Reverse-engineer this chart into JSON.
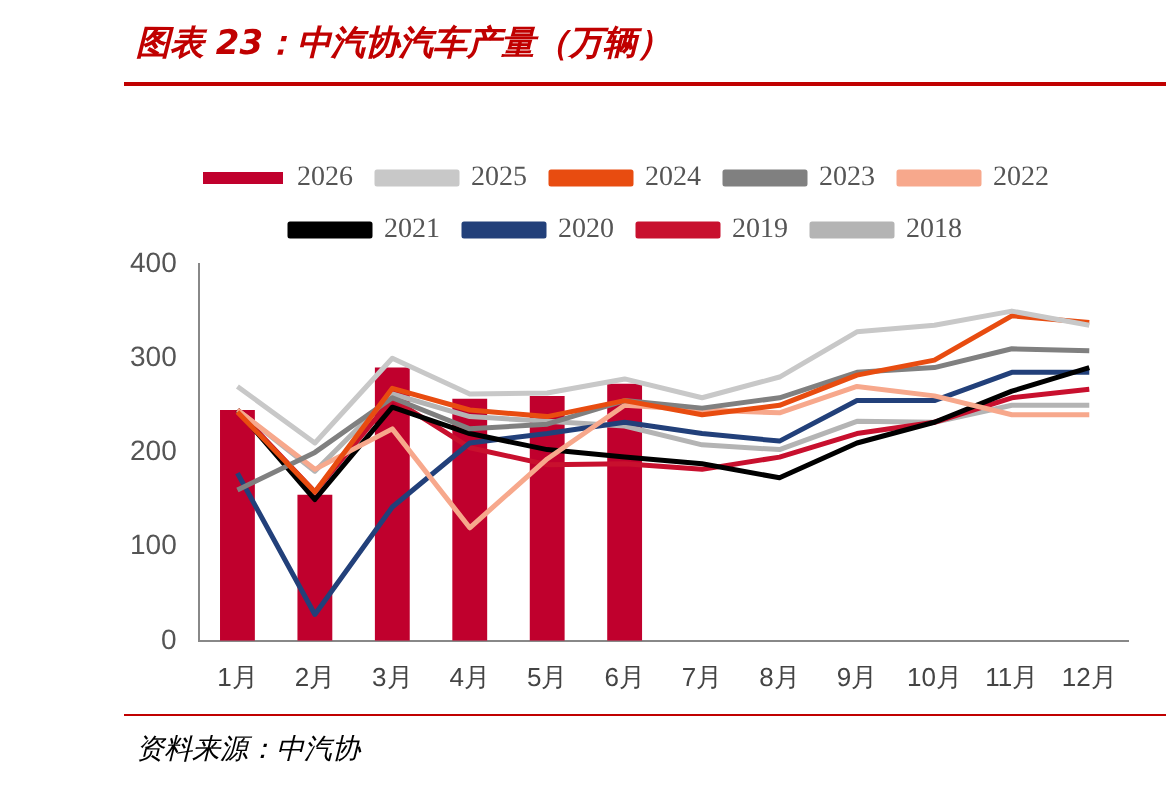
{
  "chart_data": {
    "type": "line",
    "title": "图表 23：中汽协汽车产量（万辆）",
    "categories": [
      "1月",
      "2月",
      "3月",
      "4月",
      "5月",
      "6月",
      "7月",
      "8月",
      "9月",
      "10月",
      "11月",
      "12月"
    ],
    "series": [
      {
        "name": "2026",
        "type": "bar",
        "color": "#c0002d",
        "values": [
          245,
          155,
          290,
          257,
          260,
          273,
          null,
          null,
          null,
          null,
          null,
          null
        ]
      },
      {
        "name": "2025",
        "color": "#c8c8c8",
        "values": [
          270,
          210,
          300,
          262,
          263,
          278,
          258,
          280,
          328,
          335,
          350,
          335
        ]
      },
      {
        "name": "2024",
        "color": "#e84c10",
        "values": [
          243,
          158,
          268,
          245,
          238,
          255,
          240,
          250,
          282,
          298,
          345,
          338
        ]
      },
      {
        "name": "2023",
        "color": "#808080",
        "values": [
          160,
          200,
          258,
          225,
          230,
          255,
          247,
          258,
          285,
          290,
          310,
          308
        ]
      },
      {
        "name": "2022",
        "color": "#f7a88c",
        "values": [
          245,
          182,
          225,
          120,
          193,
          250,
          245,
          242,
          270,
          260,
          240,
          240
        ]
      },
      {
        "name": "2021",
        "color": "#000000",
        "values": [
          245,
          150,
          248,
          220,
          203,
          195,
          188,
          173,
          210,
          232,
          265,
          290
        ]
      },
      {
        "name": "2020",
        "color": "#22407a",
        "values": [
          178,
          28,
          142,
          210,
          220,
          232,
          220,
          212,
          255,
          255,
          285,
          285
        ]
      },
      {
        "name": "2019",
        "color": "#c8102e",
        "values": [
          245,
          158,
          257,
          205,
          187,
          188,
          182,
          195,
          220,
          232,
          258,
          267
        ]
      },
      {
        "name": "2018",
        "color": "#b4b4b4",
        "values": [
          245,
          180,
          262,
          238,
          233,
          228,
          208,
          203,
          233,
          232,
          250,
          250
        ]
      }
    ],
    "ylim": [
      0,
      400
    ],
    "yticks": [
      0,
      100,
      200,
      300,
      400
    ],
    "grid": false,
    "legend": "top",
    "marker": "none",
    "line_style": "solid",
    "annotations": [
      "资料来源：中汽协"
    ]
  }
}
